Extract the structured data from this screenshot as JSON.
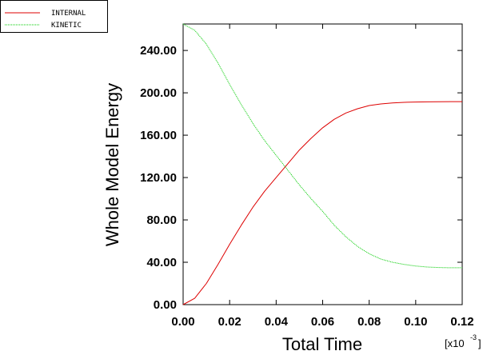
{
  "chart_data": {
    "type": "line",
    "xlabel": "Total Time",
    "ylabel": "Whole Model Energy",
    "x_multiplier_label": "[x10",
    "x_multiplier_exp": "-3",
    "x_multiplier_close": "]",
    "xlim": [
      0,
      0.12
    ],
    "ylim": [
      0,
      265
    ],
    "x_ticks": [
      "0.00",
      "0.02",
      "0.04",
      "0.06",
      "0.08",
      "0.10",
      "0.12"
    ],
    "y_ticks": [
      "0.00",
      "40.00",
      "80.00",
      "120.00",
      "160.00",
      "200.00",
      "240.00"
    ],
    "legend_placement": "top-left",
    "grid": false,
    "series": [
      {
        "name": "INTERNAL",
        "color": "#dd0000",
        "x": [
          0,
          0.005,
          0.01,
          0.015,
          0.02,
          0.025,
          0.03,
          0.035,
          0.04,
          0.045,
          0.05,
          0.055,
          0.06,
          0.065,
          0.07,
          0.075,
          0.08,
          0.085,
          0.09,
          0.095,
          0.1,
          0.105,
          0.11,
          0.115,
          0.12
        ],
        "y": [
          0,
          6,
          20,
          38,
          57,
          75,
          92,
          107,
          120,
          133,
          146,
          157,
          167,
          175,
          181,
          185,
          188,
          189.5,
          190.5,
          191,
          191.3,
          191.5,
          191.6,
          191.7,
          191.7
        ]
      },
      {
        "name": "KINETIC",
        "color": "#00cc00",
        "x": [
          0,
          0.005,
          0.01,
          0.015,
          0.02,
          0.025,
          0.03,
          0.035,
          0.04,
          0.045,
          0.05,
          0.055,
          0.06,
          0.065,
          0.07,
          0.075,
          0.08,
          0.085,
          0.09,
          0.095,
          0.1,
          0.105,
          0.11,
          0.115,
          0.12
        ],
        "y": [
          265,
          259,
          246,
          228,
          208,
          189,
          171,
          155,
          141,
          127,
          113,
          100,
          88,
          75,
          64,
          55,
          48,
          43,
          40,
          38,
          36.5,
          35.5,
          35,
          34.8,
          34.8
        ]
      }
    ]
  }
}
